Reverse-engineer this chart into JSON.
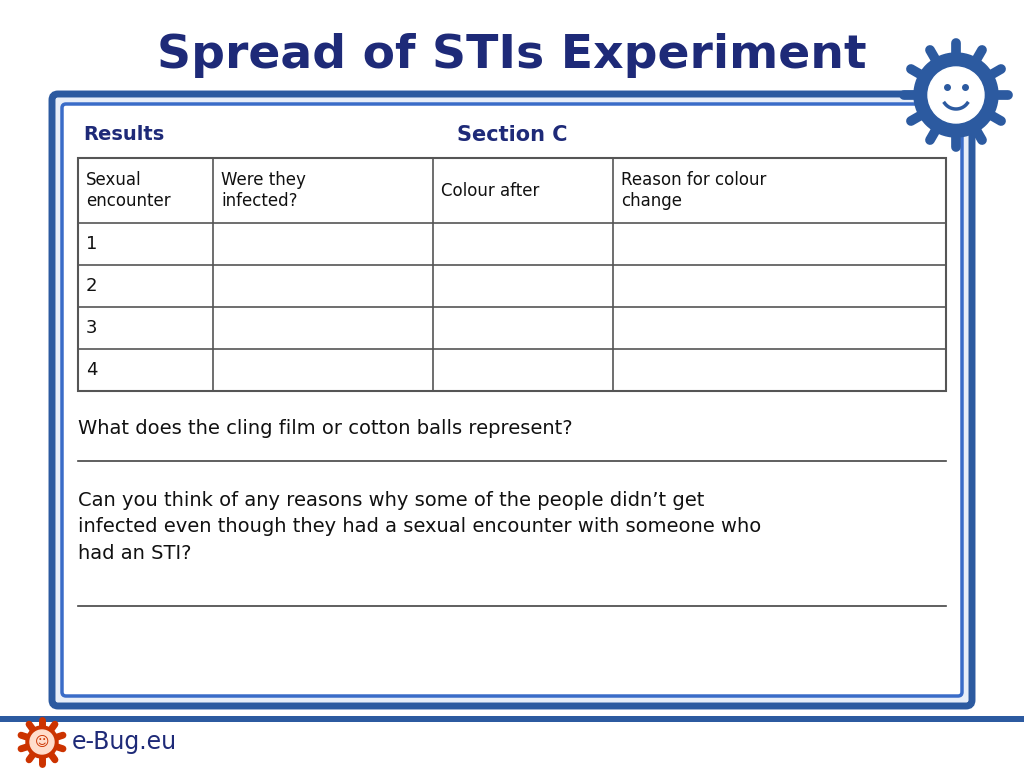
{
  "title": "Spread of STIs Experiment",
  "title_color": "#1e2a78",
  "title_fontsize": 34,
  "section_label": "Section C",
  "results_label": "Results",
  "table_headers": [
    "Sexual\nencounter",
    "Were they\ninfected?",
    "Colour after",
    "Reason for colour\nchange"
  ],
  "table_rows": [
    "1",
    "2",
    "3",
    "4"
  ],
  "question1": "What does the cling film or cotton balls represent?",
  "question2": "Can you think of any reasons why some of the people didn’t get\ninfected even though they had a sexual encounter with someone who\nhad an STI?",
  "outer_border_color": "#2c5aa0",
  "inner_border_color": "#3a6cc8",
  "table_border_color": "#555555",
  "text_color": "#1e2a78",
  "body_text_color": "#111111",
  "background_color": "#ffffff",
  "panel_bg": "#e8eef8",
  "footer_bar_color": "#2c5aa0",
  "footer_text": "e-Bug.eu",
  "footer_text_color": "#1e2a78",
  "logo_color": "#2c5aa0"
}
